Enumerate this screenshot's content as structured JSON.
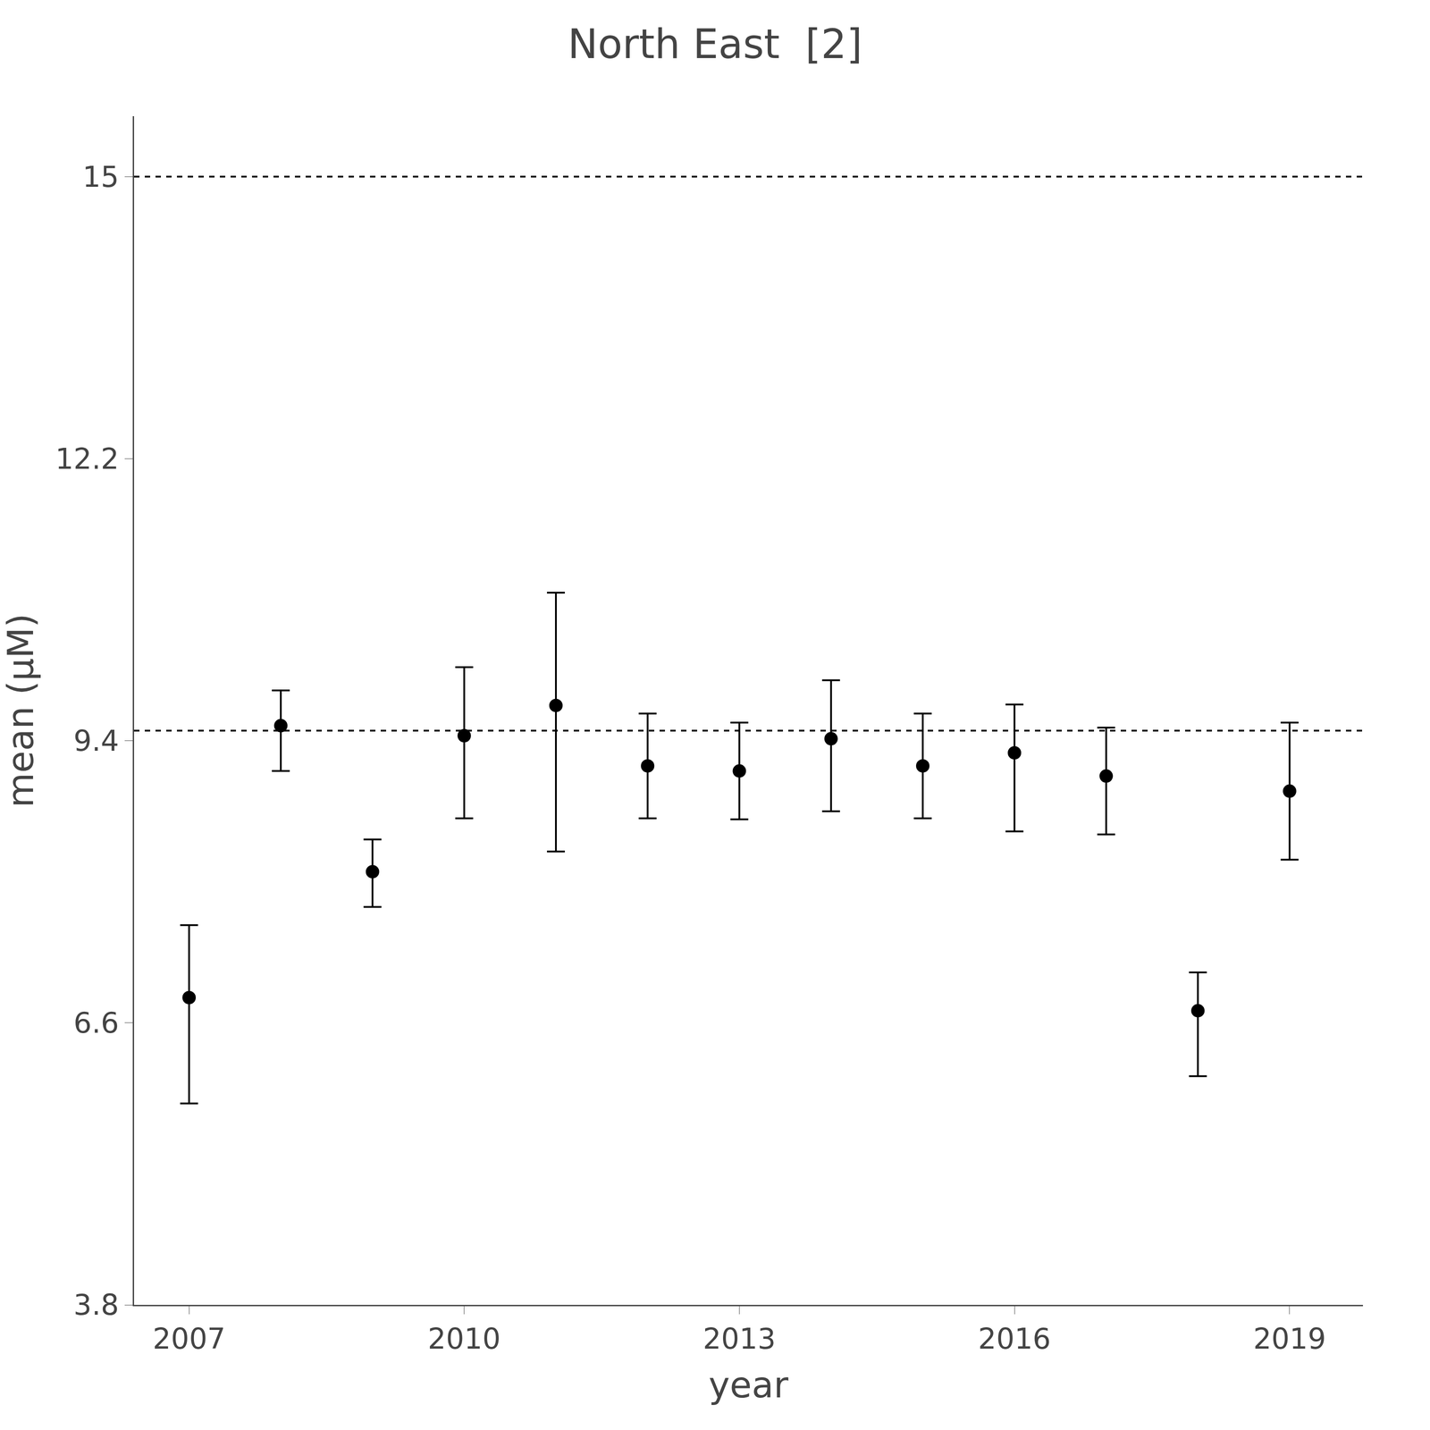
{
  "chart_data": {
    "type": "scatter",
    "title": "North East  [2]",
    "xlabel": "year",
    "ylabel": "mean (μM)",
    "x": [
      2007,
      2008,
      2009,
      2010,
      2011,
      2012,
      2013,
      2014,
      2015,
      2016,
      2017,
      2018,
      2019
    ],
    "values": [
      6.85,
      9.55,
      8.1,
      9.45,
      9.75,
      9.15,
      9.1,
      9.42,
      9.15,
      9.28,
      9.05,
      6.72,
      8.9
    ],
    "err_low": [
      1.05,
      0.45,
      0.35,
      0.82,
      1.45,
      0.52,
      0.48,
      0.72,
      0.52,
      0.78,
      0.58,
      0.65,
      0.68
    ],
    "err_high": [
      0.72,
      0.35,
      0.32,
      0.68,
      1.12,
      0.52,
      0.48,
      0.58,
      0.52,
      0.48,
      0.48,
      0.38,
      0.68
    ],
    "hlines": [
      15.0,
      9.5
    ],
    "line_style": "dashed",
    "marker": "circle",
    "color": "#000000",
    "xlim": [
      2006.4,
      2019.8
    ],
    "xticks": [
      2007,
      2010,
      2013,
      2016,
      2019
    ],
    "ylim": [
      3.8,
      15.6
    ],
    "yticks": [
      3.8,
      6.6,
      9.4,
      12.2,
      15
    ],
    "grid": false
  }
}
